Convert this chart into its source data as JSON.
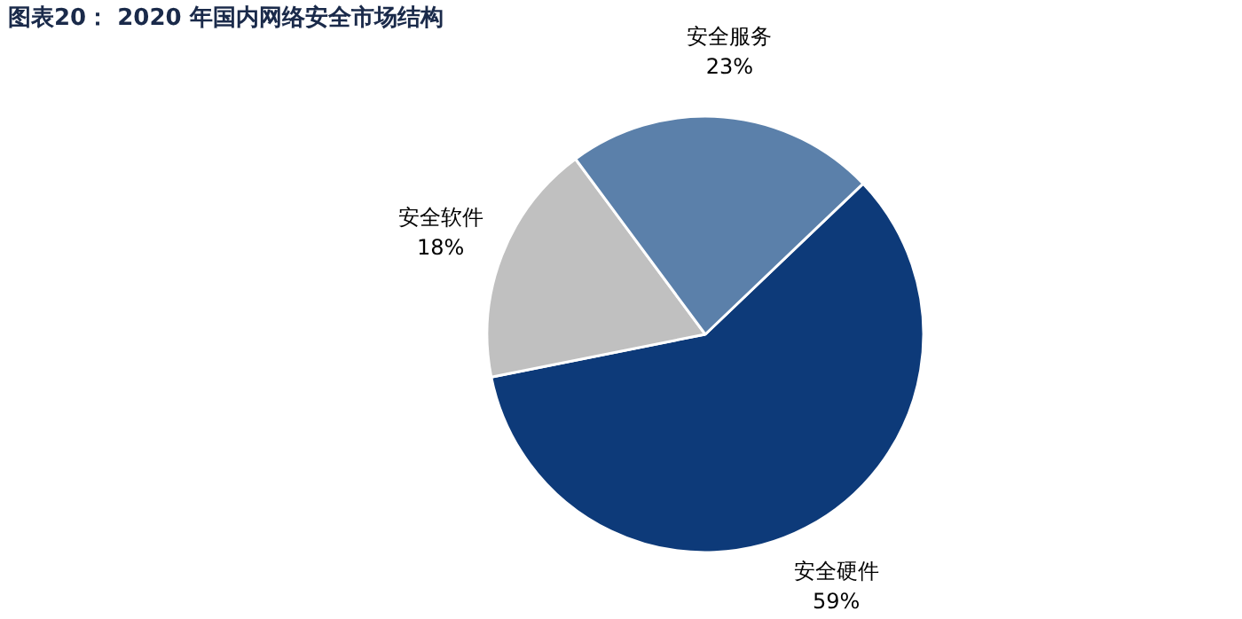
{
  "chart_data": {
    "type": "pie",
    "title": "图表20：  2020 年国内网络安全市场结构",
    "categories": [
      "安全硬件",
      "安全软件",
      "安全服务"
    ],
    "values": [
      59,
      18,
      23
    ],
    "value_labels": [
      "59%",
      "18%",
      "23%"
    ],
    "colors": [
      "#0d3a79",
      "#c0c0c0",
      "#5b80aa"
    ]
  }
}
